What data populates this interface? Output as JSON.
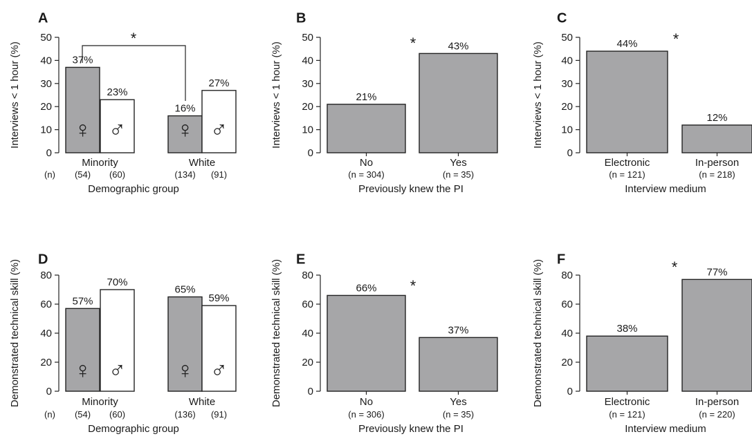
{
  "chart_data": [
    {
      "panel": "A",
      "type": "bar",
      "ylabel": "Interviews < 1 hour (%)",
      "ylim": [
        0,
        50
      ],
      "yticks": [
        0,
        10,
        20,
        30,
        40,
        50
      ],
      "xlabel": "Demographic group",
      "n_prefix": "(n)",
      "groups": [
        "Minority",
        "White"
      ],
      "bars": [
        {
          "group": "Minority",
          "sex": "female",
          "symbol": "♀",
          "value": 37,
          "label": "37%",
          "n": "(54)",
          "fill": "#a6a6a8"
        },
        {
          "group": "Minority",
          "sex": "male",
          "symbol": "♂",
          "value": 23,
          "label": "23%",
          "n": "(60)",
          "fill": "#ffffff"
        },
        {
          "group": "White",
          "sex": "female",
          "symbol": "♀",
          "value": 16,
          "label": "16%",
          "n": "(134)",
          "fill": "#a6a6a8"
        },
        {
          "group": "White",
          "sex": "male",
          "symbol": "♂",
          "value": 27,
          "label": "27%",
          "n": "(91)",
          "fill": "#ffffff"
        }
      ],
      "significance": "*"
    },
    {
      "panel": "B",
      "type": "bar",
      "ylabel": "Interviews < 1 hour (%)",
      "ylim": [
        0,
        50
      ],
      "yticks": [
        0,
        10,
        20,
        30,
        40,
        50
      ],
      "xlabel": "Previously knew the PI",
      "bars": [
        {
          "category": "No",
          "value": 21,
          "label": "21%",
          "n": "(n = 304)",
          "fill": "#a6a6a8"
        },
        {
          "category": "Yes",
          "value": 43,
          "label": "43%",
          "n": "(n = 35)",
          "fill": "#a6a6a8"
        }
      ],
      "significance": "*"
    },
    {
      "panel": "C",
      "type": "bar",
      "ylabel": "Interviews < 1 hour (%)",
      "ylim": [
        0,
        50
      ],
      "yticks": [
        0,
        10,
        20,
        30,
        40,
        50
      ],
      "xlabel": "Interview medium",
      "bars": [
        {
          "category": "Electronic",
          "value": 44,
          "label": "44%",
          "n": "(n = 121)",
          "fill": "#a6a6a8"
        },
        {
          "category": "In-person",
          "value": 12,
          "label": "12%",
          "n": "(n = 218)",
          "fill": "#a6a6a8"
        }
      ],
      "significance": "*"
    },
    {
      "panel": "D",
      "type": "bar",
      "ylabel": "Demonstrated technical skill (%)",
      "ylim": [
        0,
        80
      ],
      "yticks": [
        0,
        20,
        40,
        60,
        80
      ],
      "xlabel": "Demographic group",
      "n_prefix": "(n)",
      "groups": [
        "Minority",
        "White"
      ],
      "bars": [
        {
          "group": "Minority",
          "sex": "female",
          "symbol": "♀",
          "value": 57,
          "label": "57%",
          "n": "(54)",
          "fill": "#a6a6a8"
        },
        {
          "group": "Minority",
          "sex": "male",
          "symbol": "♂",
          "value": 70,
          "label": "70%",
          "n": "(60)",
          "fill": "#ffffff"
        },
        {
          "group": "White",
          "sex": "female",
          "symbol": "♀",
          "value": 65,
          "label": "65%",
          "n": "(136)",
          "fill": "#a6a6a8"
        },
        {
          "group": "White",
          "sex": "male",
          "symbol": "♂",
          "value": 59,
          "label": "59%",
          "n": "(91)",
          "fill": "#ffffff"
        }
      ]
    },
    {
      "panel": "E",
      "type": "bar",
      "ylabel": "Demonstrated technical skill (%)",
      "ylim": [
        0,
        80
      ],
      "yticks": [
        0,
        20,
        40,
        60,
        80
      ],
      "xlabel": "Previously knew the PI",
      "bars": [
        {
          "category": "No",
          "value": 66,
          "label": "66%",
          "n": "(n = 306)",
          "fill": "#a6a6a8"
        },
        {
          "category": "Yes",
          "value": 37,
          "label": "37%",
          "n": "(n = 35)",
          "fill": "#a6a6a8"
        }
      ],
      "significance": "*"
    },
    {
      "panel": "F",
      "type": "bar",
      "ylabel": "Demonstrated technical skill (%)",
      "ylim": [
        0,
        80
      ],
      "yticks": [
        0,
        20,
        40,
        60,
        80
      ],
      "xlabel": "Interview medium",
      "bars": [
        {
          "category": "Electronic",
          "value": 38,
          "label": "38%",
          "n": "(n = 121)",
          "fill": "#a6a6a8"
        },
        {
          "category": "In-person",
          "value": 77,
          "label": "77%",
          "n": "(n = 220)",
          "fill": "#a6a6a8"
        }
      ],
      "significance": "*"
    }
  ]
}
